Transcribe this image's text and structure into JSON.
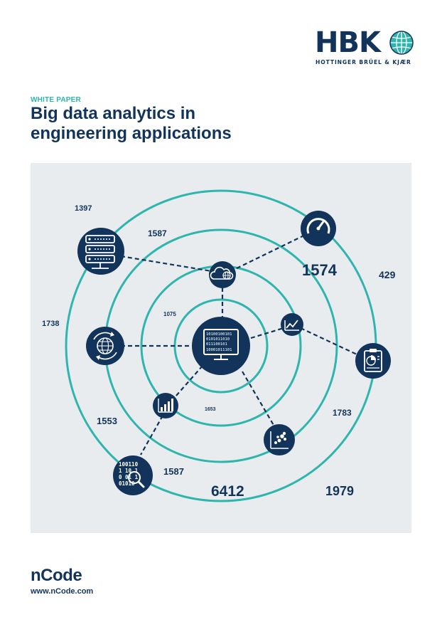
{
  "header": {
    "logo_text": "HBK",
    "logo_subtitle": "HOTTINGER BRÜEL & KJÆR",
    "logo_icon": "globe-icon"
  },
  "eyebrow": "WHITE PAPER",
  "title": {
    "line1": "Big data analytics in",
    "line2": "engineering applications"
  },
  "diagram": {
    "numbers": {
      "n1397": "1397",
      "n1587_top": "1587",
      "n1574": "1574",
      "n429": "429",
      "n1075": "1075",
      "n1738": "1738",
      "n1653": "1653",
      "n1553": "1553",
      "n1783": "1783",
      "n1587_bottom": "1587",
      "n6412": "6412",
      "n1979": "1979"
    },
    "binary": {
      "monitor_line1": "10100100101",
      "monitor_line2": "0101011010",
      "monitor_line3": "011100101",
      "monitor_line4": "10001011101",
      "magnifier_line1": "100110",
      "magnifier_line2": "1 10 1",
      "magnifier_line3": "0 01 1",
      "magnifier_line4": "01010"
    },
    "icons": [
      "server-icon",
      "speedometer-icon",
      "cloud-globe-icon",
      "line-chart-icon",
      "monitor-icon",
      "recycle-globe-icon",
      "clipboard-chart-icon",
      "bar-chart-icon",
      "scatter-plot-icon",
      "magnifier-binary-icon"
    ]
  },
  "footer": {
    "brand": "nCode",
    "url": "www.nCode.com"
  },
  "colors": {
    "navy": "#12345a",
    "teal": "#2fb5ad",
    "panel": "#e9ecef"
  }
}
